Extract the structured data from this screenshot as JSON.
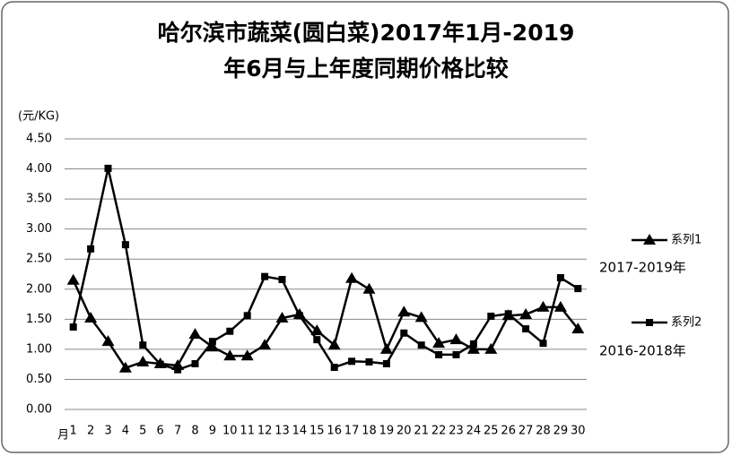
{
  "chart_data": {
    "type": "line",
    "title": [
      "哈尔滨市蔬菜(圆白菜)2017年1月-2019",
      "年6月与上年度同期价格比较"
    ],
    "y_label": "(元/KG)",
    "x_label": "月",
    "categories": [
      "1",
      "2",
      "3",
      "4",
      "5",
      "6",
      "7",
      "8",
      "9",
      "10",
      "11",
      "12",
      "13",
      "14",
      "15",
      "16",
      "17",
      "18",
      "19",
      "20",
      "21",
      "22",
      "23",
      "24",
      "25",
      "26",
      "27",
      "28",
      "29",
      "30"
    ],
    "series": [
      {
        "name": "系列1",
        "note": "2017-2019年",
        "color": "#000000",
        "marker": "triangle",
        "values": [
          2.15,
          1.52,
          1.13,
          0.69,
          0.79,
          0.76,
          0.73,
          1.25,
          1.04,
          0.89,
          0.89,
          1.07,
          1.52,
          1.58,
          1.31,
          1.07,
          2.18,
          2.0,
          1.0,
          1.62,
          1.53,
          1.1,
          1.16,
          1.0,
          1.0,
          1.56,
          1.58,
          1.7,
          1.7,
          1.34
        ]
      },
      {
        "name": "系列2",
        "note": "2016-2018年",
        "color": "#000000",
        "marker": "square",
        "values": [
          1.37,
          2.67,
          4.01,
          2.74,
          1.07,
          0.75,
          0.66,
          0.76,
          1.13,
          1.3,
          1.56,
          2.21,
          2.16,
          1.56,
          1.16,
          0.7,
          0.8,
          0.79,
          0.76,
          1.27,
          1.07,
          0.91,
          0.91,
          1.09,
          1.55,
          1.59,
          1.34,
          1.1,
          2.19,
          2.01
        ]
      }
    ],
    "ylim": [
      0,
      4.5
    ],
    "yticks": [
      {
        "value": 0,
        "label": "0.00"
      },
      {
        "value": 0.5,
        "label": "0.50"
      },
      {
        "value": 1,
        "label": "1.00"
      },
      {
        "value": 1.5,
        "label": "1.50"
      },
      {
        "value": 2,
        "label": "2.00"
      },
      {
        "value": 2.5,
        "label": "2.50"
      },
      {
        "value": 3,
        "label": "3.00"
      },
      {
        "value": 3.5,
        "label": "3.50"
      },
      {
        "value": 4,
        "label": "4.00"
      },
      {
        "value": 4.5,
        "label": "4.50"
      }
    ],
    "grid": true
  }
}
